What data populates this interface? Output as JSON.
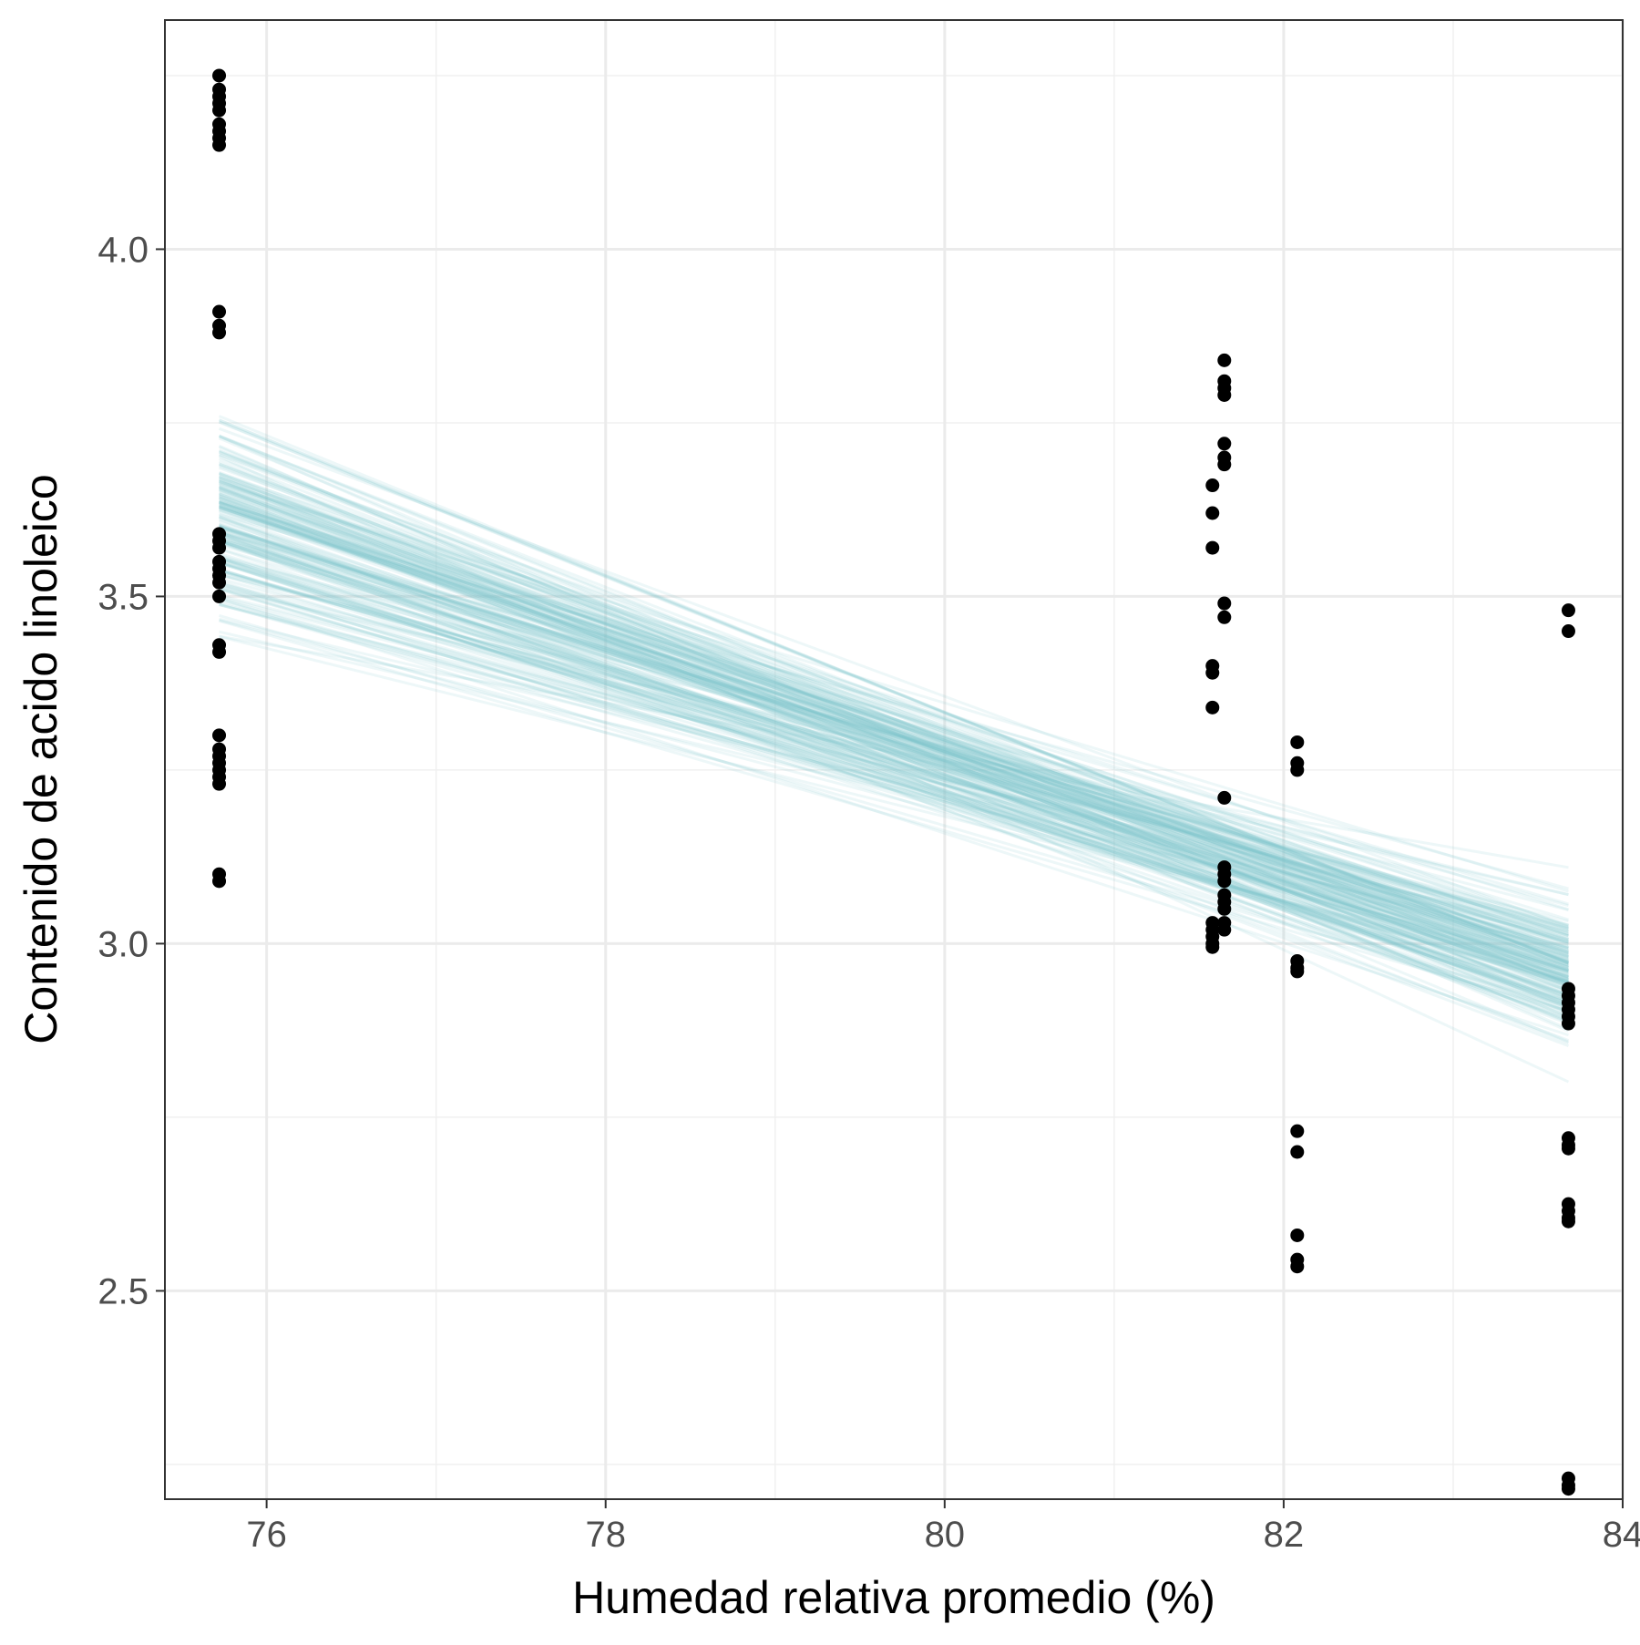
{
  "chart_data": {
    "type": "scatter",
    "xlabel": "Humedad relativa promedio (%)",
    "ylabel": "Contenido de acido linoleico",
    "xlim": [
      75.4,
      84.0
    ],
    "ylim": [
      2.2,
      4.33
    ],
    "x_ticks": [
      76,
      78,
      80,
      82,
      84
    ],
    "y_ticks": [
      2.5,
      3.0,
      3.5,
      4.0
    ],
    "x_tick_labels": [
      "76",
      "78",
      "80",
      "82",
      "84"
    ],
    "y_tick_labels": [
      "2.5",
      "3.0",
      "3.5",
      "4.0"
    ],
    "grid": true,
    "legend": "none",
    "series": [
      {
        "kind": "points",
        "color": "#000000",
        "points": [
          [
            75.72,
            4.25
          ],
          [
            75.72,
            4.23
          ],
          [
            75.72,
            4.22
          ],
          [
            75.72,
            4.21
          ],
          [
            75.72,
            4.2
          ],
          [
            75.72,
            4.18
          ],
          [
            75.72,
            4.17
          ],
          [
            75.72,
            4.16
          ],
          [
            75.72,
            4.15
          ],
          [
            75.72,
            3.91
          ],
          [
            75.72,
            3.89
          ],
          [
            75.72,
            3.88
          ],
          [
            75.72,
            3.59
          ],
          [
            75.72,
            3.58
          ],
          [
            75.72,
            3.57
          ],
          [
            75.72,
            3.55
          ],
          [
            75.72,
            3.54
          ],
          [
            75.72,
            3.53
          ],
          [
            75.72,
            3.52
          ],
          [
            75.72,
            3.5
          ],
          [
            75.72,
            3.43
          ],
          [
            75.72,
            3.42
          ],
          [
            75.72,
            3.3
          ],
          [
            75.72,
            3.28
          ],
          [
            75.72,
            3.27
          ],
          [
            75.72,
            3.26
          ],
          [
            75.72,
            3.25
          ],
          [
            75.72,
            3.24
          ],
          [
            75.72,
            3.23
          ],
          [
            75.72,
            3.1
          ],
          [
            75.72,
            3.09
          ],
          [
            81.65,
            3.84
          ],
          [
            81.65,
            3.81
          ],
          [
            81.65,
            3.8
          ],
          [
            81.65,
            3.79
          ],
          [
            81.65,
            3.72
          ],
          [
            81.65,
            3.7
          ],
          [
            81.65,
            3.69
          ],
          [
            81.58,
            3.66
          ],
          [
            81.58,
            3.62
          ],
          [
            81.58,
            3.57
          ],
          [
            81.65,
            3.49
          ],
          [
            81.65,
            3.47
          ],
          [
            81.58,
            3.4
          ],
          [
            81.58,
            3.39
          ],
          [
            81.58,
            3.34
          ],
          [
            81.65,
            3.21
          ],
          [
            81.65,
            3.11
          ],
          [
            81.65,
            3.1
          ],
          [
            81.65,
            3.09
          ],
          [
            81.65,
            3.07
          ],
          [
            81.65,
            3.06
          ],
          [
            81.65,
            3.05
          ],
          [
            81.65,
            3.03
          ],
          [
            81.65,
            3.02
          ],
          [
            81.58,
            3.03
          ],
          [
            81.58,
            3.02
          ],
          [
            81.58,
            3.01
          ],
          [
            81.58,
            3.0
          ],
          [
            81.58,
            2.995
          ],
          [
            82.08,
            3.29
          ],
          [
            82.08,
            3.26
          ],
          [
            82.08,
            3.25
          ],
          [
            82.08,
            2.975
          ],
          [
            82.08,
            2.965
          ],
          [
            82.08,
            2.96
          ],
          [
            82.08,
            2.73
          ],
          [
            82.08,
            2.7
          ],
          [
            82.08,
            2.58
          ],
          [
            82.08,
            2.545
          ],
          [
            82.08,
            2.535
          ],
          [
            83.68,
            3.48
          ],
          [
            83.68,
            3.45
          ],
          [
            83.68,
            2.935
          ],
          [
            83.68,
            2.925
          ],
          [
            83.68,
            2.915
          ],
          [
            83.68,
            2.905
          ],
          [
            83.68,
            2.895
          ],
          [
            83.68,
            2.885
          ],
          [
            83.68,
            2.72
          ],
          [
            83.68,
            2.71
          ],
          [
            83.68,
            2.705
          ],
          [
            83.68,
            2.625
          ],
          [
            83.68,
            2.615
          ],
          [
            83.68,
            2.605
          ],
          [
            83.68,
            2.6
          ],
          [
            83.68,
            2.23
          ],
          [
            83.68,
            2.22
          ],
          [
            83.68,
            2.215
          ]
        ]
      },
      {
        "kind": "line-ensemble",
        "color": "#7fc9cf",
        "opacity": 0.14,
        "x_range": [
          75.72,
          83.68
        ],
        "count": 200,
        "y_center": [
          3.61,
          2.96
        ],
        "y_spread": [
          0.08,
          0.055
        ]
      }
    ]
  }
}
